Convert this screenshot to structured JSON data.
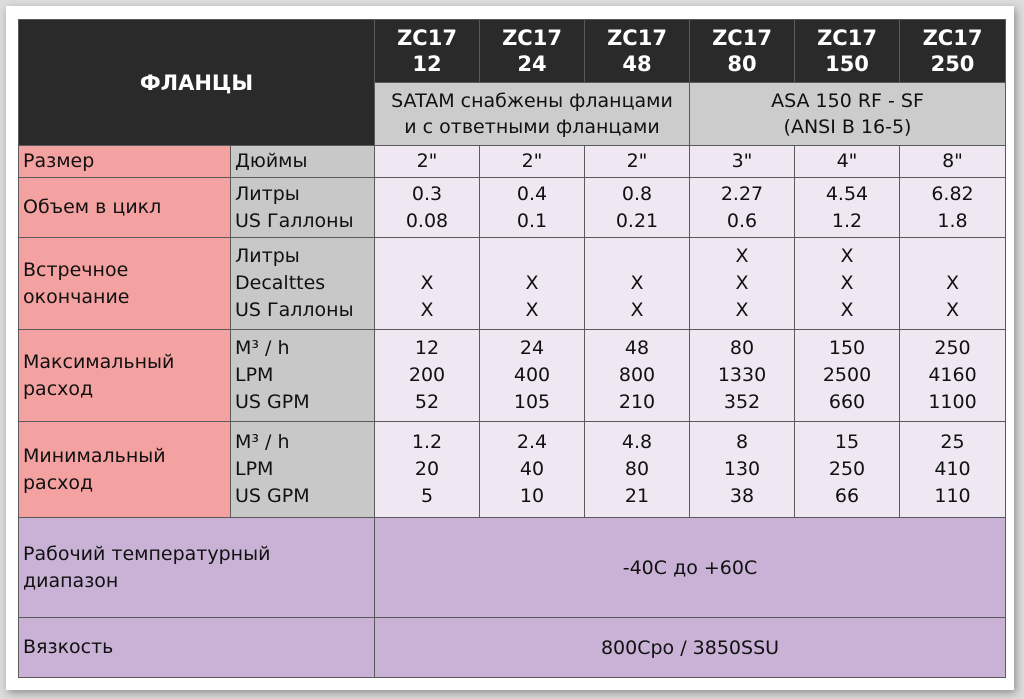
{
  "header": {
    "title": "ФЛАНЦЫ",
    "models": [
      {
        "l1": "ZC17",
        "l2": "12"
      },
      {
        "l1": "ZC17",
        "l2": "24"
      },
      {
        "l1": "ZC17",
        "l2": "48"
      },
      {
        "l1": "ZC17",
        "l2": "80"
      },
      {
        "l1": "ZC17",
        "l2": "150"
      },
      {
        "l1": "ZC17",
        "l2": "250"
      }
    ],
    "group_a": {
      "l1": "SATAM снабжены фланцами",
      "l2": "и с ответными фланцами"
    },
    "group_b": {
      "l1": "ASA 150 RF - SF",
      "l2": "(ANSI B 16-5)"
    }
  },
  "rows": {
    "size": {
      "label": "Размер",
      "unit": "Дюймы",
      "values": [
        "2\"",
        "2\"",
        "2\"",
        "3\"",
        "4\"",
        "8\""
      ]
    },
    "volume": {
      "label": "Объем в цикл",
      "units": [
        "Литры",
        "US Галлоны"
      ],
      "values": [
        [
          "0.3",
          "0.08"
        ],
        [
          "0.4",
          "0.1"
        ],
        [
          "0.8",
          "0.21"
        ],
        [
          "2.27",
          "0.6"
        ],
        [
          "4.54",
          "1.2"
        ],
        [
          "6.82",
          "1.8"
        ]
      ]
    },
    "counter": {
      "label_l1": "Встречное",
      "label_l2": "окончание",
      "units": [
        "Литры",
        "Decalttes",
        "US Галлоны"
      ],
      "values": [
        [
          "",
          "X",
          "X"
        ],
        [
          "",
          "X",
          "X"
        ],
        [
          "",
          "X",
          "X"
        ],
        [
          "X",
          "X",
          "X"
        ],
        [
          "X",
          "X",
          "X"
        ],
        [
          "",
          "X",
          "X"
        ]
      ]
    },
    "max_flow": {
      "label_l1": "Максимальный",
      "label_l2": "расход",
      "units": [
        "M³ / h",
        "LPM",
        "US GPM"
      ],
      "values": [
        [
          "12",
          "200",
          "52"
        ],
        [
          "24",
          "400",
          "105"
        ],
        [
          "48",
          "800",
          "210"
        ],
        [
          "80",
          "1330",
          "352"
        ],
        [
          "150",
          "2500",
          "660"
        ],
        [
          "250",
          "4160",
          "1100"
        ]
      ]
    },
    "min_flow": {
      "label_l1": "Минимальный",
      "label_l2": "расход",
      "units": [
        "M³ / h",
        "LPM",
        "US GPM"
      ],
      "values": [
        [
          "1.2",
          "20",
          "5"
        ],
        [
          "2.4",
          "40",
          "10"
        ],
        [
          "4.8",
          "80",
          "21"
        ],
        [
          "8",
          "130",
          "38"
        ],
        [
          "15",
          "250",
          "66"
        ],
        [
          "25",
          "410",
          "110"
        ]
      ]
    },
    "temperature": {
      "label_l1": "Рабочий температурный",
      "label_l2": "диапазон",
      "value": "-40C  до +60C"
    },
    "viscosity": {
      "label": "Вязкость",
      "value": "800Cpo / 3850SSU"
    }
  }
}
